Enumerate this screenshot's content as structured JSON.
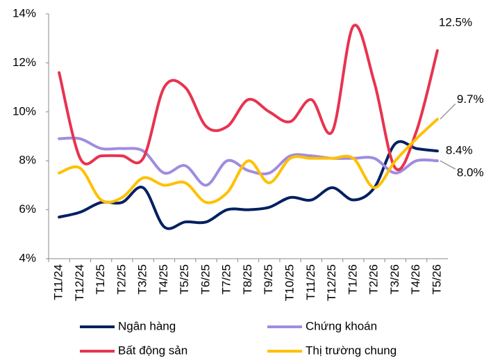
{
  "chart_data": {
    "type": "line",
    "categories": [
      "T11/24",
      "T12/24",
      "T1/25",
      "T2/25",
      "T3/25",
      "T4/25",
      "T5/25",
      "T6/25",
      "T7/25",
      "T8/25",
      "T9/25",
      "T10/25",
      "T11/25",
      "T12/25",
      "T1/26",
      "T2/26",
      "T3/26",
      "T4/26",
      "T5/26"
    ],
    "series": [
      {
        "name": "Ngân hàng",
        "color": "#002060",
        "values": [
          5.7,
          5.9,
          6.3,
          6.3,
          6.9,
          5.3,
          5.5,
          5.5,
          6.0,
          6.0,
          6.1,
          6.5,
          6.4,
          6.9,
          6.4,
          6.9,
          8.7,
          8.5,
          8.4
        ],
        "value_labels": [
          null,
          null,
          null,
          null,
          null,
          null,
          null,
          null,
          null,
          null,
          null,
          null,
          null,
          null,
          null,
          null,
          null,
          null,
          "8.4%"
        ]
      },
      {
        "name": "Chứng khoán",
        "color": "#a08ce0",
        "values": [
          8.9,
          8.9,
          8.5,
          8.5,
          8.4,
          7.5,
          7.8,
          7.0,
          8.0,
          7.6,
          7.5,
          8.2,
          8.2,
          8.1,
          8.1,
          8.1,
          7.5,
          8.0,
          8.0
        ],
        "value_labels": [
          null,
          null,
          null,
          null,
          null,
          null,
          null,
          null,
          null,
          null,
          null,
          null,
          null,
          null,
          null,
          null,
          null,
          null,
          "8.0%"
        ]
      },
      {
        "name": "Bất động sản",
        "color": "#e8334f",
        "values": [
          11.6,
          8.1,
          8.2,
          8.2,
          8.1,
          11.0,
          11.0,
          9.4,
          9.4,
          10.5,
          10.0,
          9.6,
          10.5,
          9.2,
          13.5,
          11.2,
          7.7,
          9.2,
          12.5
        ],
        "value_labels": [
          null,
          null,
          null,
          null,
          null,
          null,
          null,
          null,
          null,
          null,
          null,
          null,
          null,
          null,
          null,
          null,
          null,
          null,
          "12.5%"
        ]
      },
      {
        "name": "Thị trường chung",
        "color": "#ffc000",
        "values": [
          7.5,
          7.7,
          6.4,
          6.5,
          7.3,
          7.0,
          7.1,
          6.3,
          6.7,
          8.0,
          7.1,
          8.1,
          8.1,
          8.1,
          8.1,
          6.9,
          8.0,
          8.9,
          9.7
        ],
        "value_labels": [
          null,
          null,
          null,
          null,
          null,
          null,
          null,
          null,
          null,
          null,
          null,
          null,
          null,
          null,
          null,
          null,
          null,
          null,
          "9.7%"
        ]
      }
    ],
    "ylim": [
      4,
      14
    ],
    "yticks": [
      {
        "value": 4,
        "label": "4%"
      },
      {
        "value": 6,
        "label": "6%"
      },
      {
        "value": 8,
        "label": "8%"
      },
      {
        "value": 10,
        "label": "10%"
      },
      {
        "value": 12,
        "label": "12%"
      },
      {
        "value": 14,
        "label": "14%"
      }
    ]
  }
}
